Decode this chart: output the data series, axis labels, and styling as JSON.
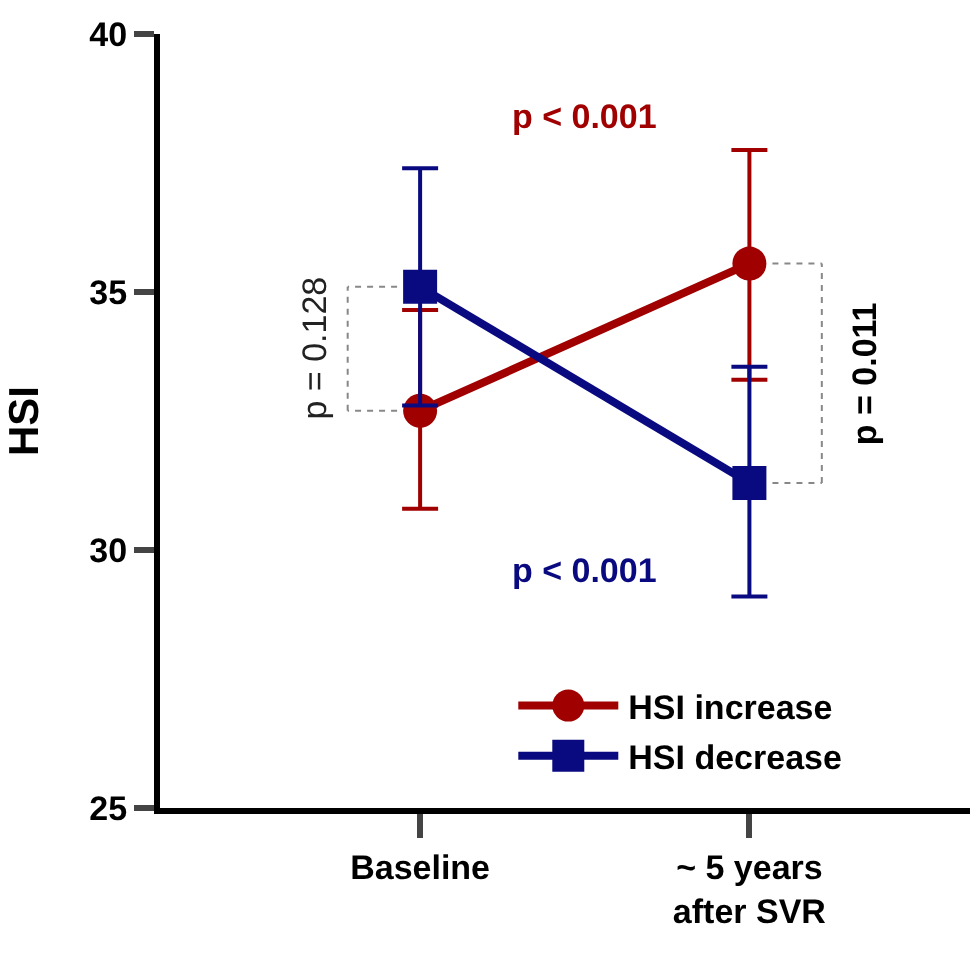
{
  "chart_data": {
    "type": "line",
    "ylabel": "HSI",
    "categories": [
      "Baseline",
      "~ 5 years\nafter SVR"
    ],
    "series": [
      {
        "name": "HSI increase",
        "color": "#a00000",
        "marker": "circle",
        "values": [
          32.7,
          35.55
        ],
        "errors": [
          [
            30.8,
            34.65
          ],
          [
            33.3,
            37.75
          ]
        ]
      },
      {
        "name": "HSI decrease",
        "color": "#0a0a80",
        "marker": "square",
        "values": [
          35.1,
          31.3
        ],
        "errors": [
          [
            32.8,
            37.4
          ],
          [
            29.1,
            33.55
          ]
        ]
      }
    ],
    "ylim": [
      25,
      40
    ],
    "yticks": [
      25,
      30,
      35,
      40
    ],
    "legend": "bottom",
    "annotations": [
      "p < 0.001",
      "p < 0.001",
      {
        "text": "p = 0.128",
        "x": "Baseline",
        "y": 33.9
      },
      {
        "text": "p = 0.011",
        "x": "~ 5 years\nafter SVR",
        "y": 33.4
      }
    ]
  }
}
